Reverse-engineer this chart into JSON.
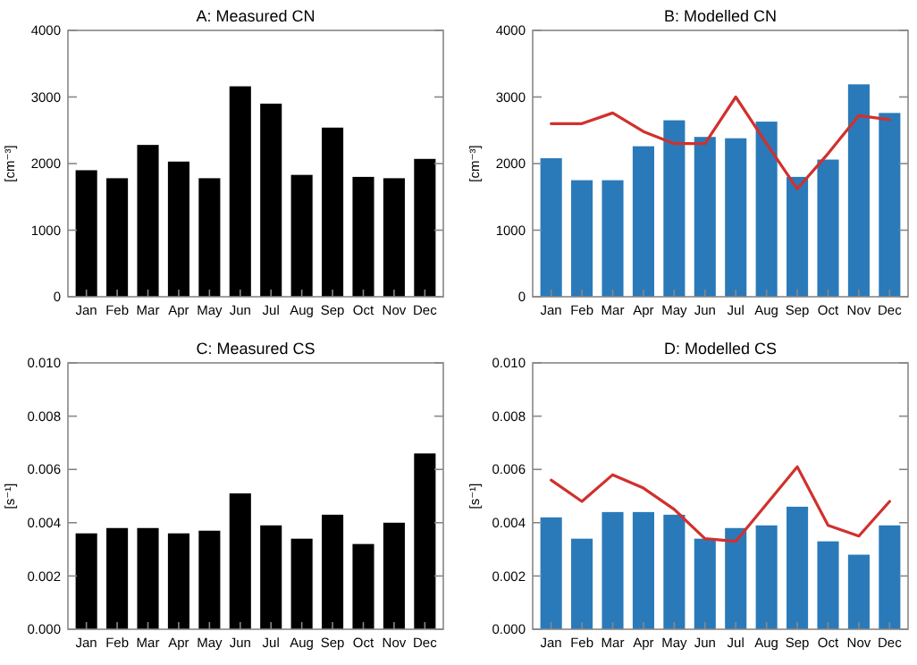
{
  "chart_data": [
    {
      "type": "bar",
      "title": "A: Measured CN",
      "ylabel": "[cm⁻³]",
      "categories": [
        "Jan",
        "Feb",
        "Mar",
        "Apr",
        "May",
        "Jun",
        "Jul",
        "Aug",
        "Sep",
        "Oct",
        "Nov",
        "Dec"
      ],
      "series": [
        {
          "color": "#000000",
          "values": [
            1900,
            1780,
            2280,
            2030,
            1780,
            3160,
            2900,
            1830,
            2540,
            1800,
            1780,
            2070
          ]
        }
      ],
      "ylim": [
        0,
        4000
      ],
      "yticks": [
        0,
        1000,
        2000,
        3000,
        4000
      ]
    },
    {
      "type": "bar",
      "title": "B: Modelled CN",
      "ylabel": "[cm⁻³]",
      "categories": [
        "Jan",
        "Feb",
        "Mar",
        "Apr",
        "May",
        "Jun",
        "Jul",
        "Aug",
        "Sep",
        "Oct",
        "Nov",
        "Dec"
      ],
      "series": [
        {
          "color": "#2a7ab9",
          "values": [
            2080,
            1750,
            1750,
            2260,
            2650,
            2400,
            2380,
            2630,
            1800,
            2060,
            3190,
            2760
          ]
        },
        {
          "type": "line",
          "color": "#d0312d",
          "values": [
            2600,
            2600,
            2760,
            2480,
            2300,
            2300,
            3000,
            2300,
            1620,
            2150,
            2720,
            2660
          ]
        }
      ],
      "ylim": [
        0,
        4000
      ],
      "yticks": [
        0,
        1000,
        2000,
        3000,
        4000
      ]
    },
    {
      "type": "bar",
      "title": "C: Measured CS",
      "ylabel": "[s⁻¹]",
      "categories": [
        "Jan",
        "Feb",
        "Mar",
        "Apr",
        "May",
        "Jun",
        "Jul",
        "Aug",
        "Sep",
        "Oct",
        "Nov",
        "Dec"
      ],
      "series": [
        {
          "color": "#000000",
          "values": [
            0.0036,
            0.0038,
            0.0038,
            0.0036,
            0.0037,
            0.0051,
            0.0039,
            0.0034,
            0.0043,
            0.0032,
            0.004,
            0.0066
          ]
        }
      ],
      "ylim": [
        0,
        0.01
      ],
      "yticks": [
        {
          "value": 0,
          "label": "0.000"
        },
        {
          "value": 0.002,
          "label": "0.002"
        },
        {
          "value": 0.004,
          "label": "0.004"
        },
        {
          "value": 0.006,
          "label": "0.006"
        },
        {
          "value": 0.008,
          "label": "0.008"
        },
        {
          "value": 0.01,
          "label": "0.010"
        }
      ]
    },
    {
      "type": "bar",
      "title": "D: Modelled CS",
      "ylabel": "[s⁻¹]",
      "categories": [
        "Jan",
        "Feb",
        "Mar",
        "Apr",
        "May",
        "Jun",
        "Jul",
        "Aug",
        "Sep",
        "Oct",
        "Nov",
        "Dec"
      ],
      "series": [
        {
          "color": "#2a7ab9",
          "values": [
            0.0042,
            0.0034,
            0.0044,
            0.0044,
            0.0043,
            0.0034,
            0.0038,
            0.0039,
            0.0046,
            0.0033,
            0.0028,
            0.0039
          ]
        },
        {
          "type": "line",
          "color": "#d0312d",
          "values": [
            0.0056,
            0.0048,
            0.0058,
            0.0053,
            0.0045,
            0.0034,
            0.0033,
            0.0047,
            0.0061,
            0.0039,
            0.0035,
            0.0048
          ]
        }
      ],
      "ylim": [
        0,
        0.01
      ],
      "yticks": [
        {
          "value": 0,
          "label": "0.000"
        },
        {
          "value": 0.002,
          "label": "0.002"
        },
        {
          "value": 0.004,
          "label": "0.004"
        },
        {
          "value": 0.006,
          "label": "0.006"
        },
        {
          "value": 0.008,
          "label": "0.008"
        },
        {
          "value": 0.01,
          "label": "0.010"
        }
      ]
    }
  ]
}
